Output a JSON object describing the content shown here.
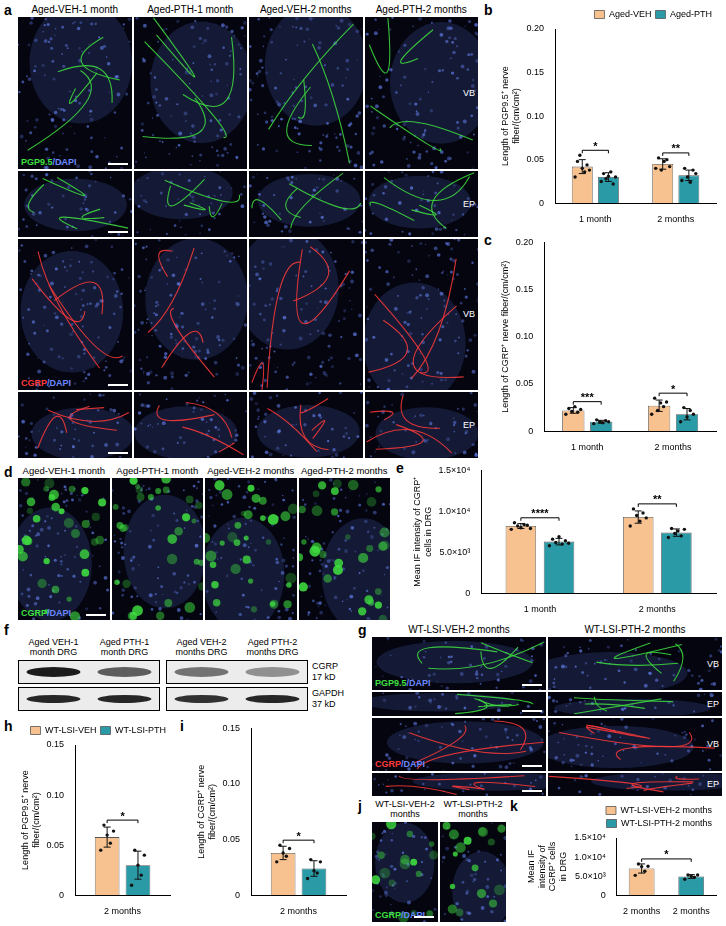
{
  "images": [
    {
      "panel": "a",
      "columns": [
        "Aged-VEH-1 month",
        "Aged-PTH-1 month",
        "Aged-VEH-2 months",
        "Aged-PTH-2 months"
      ],
      "rows": [
        {
          "stain": "PGP9.5/DAPI",
          "colors": [
            "#3fe03f",
            "#6b88ff"
          ],
          "region": "VB"
        },
        {
          "colors": [
            "#3fe03f",
            "#6b88ff"
          ],
          "region": "EP"
        },
        {
          "stain": "CGRP/DAPI",
          "colors": [
            "#ff3a3a",
            "#6b88ff"
          ],
          "region": "VB"
        },
        {
          "colors": [
            "#ff3a3a",
            "#6b88ff"
          ],
          "region": "EP"
        }
      ]
    },
    {
      "panel": "d",
      "columns": [
        "Aged-VEH-1 month",
        "Aged-PTH-1 month",
        "Aged-VEH-2 months",
        "Aged-PTH-2 months"
      ],
      "rows": [
        {
          "stain": "CGRP/DAPI",
          "colors": [
            "#3fe03f",
            "#6b88ff"
          ]
        }
      ]
    },
    {
      "panel": "g",
      "columns": [
        "WT-LSI-VEH-2 months",
        "WT-LSI-PTH-2 months"
      ],
      "rows": [
        {
          "stain": "PGP9.5/DAPI",
          "colors": [
            "#3fe03f",
            "#6b88ff"
          ],
          "region": "VB"
        },
        {
          "colors": [
            "#3fe03f",
            "#6b88ff"
          ],
          "region": "EP"
        },
        {
          "stain": "CGRP/DAPI",
          "colors": [
            "#ff3a3a",
            "#6b88ff"
          ],
          "region": "VB"
        },
        {
          "colors": [
            "#ff3a3a",
            "#6b88ff"
          ],
          "region": "EP"
        }
      ]
    },
    {
      "panel": "j",
      "columns": [
        "WT-LSI-VEH-2 months",
        "WT-LSI-PTH-2 months"
      ],
      "rows": [
        {
          "stain": "CGRP/DAPI",
          "colors": [
            "#3fe03f",
            "#6b88ff"
          ]
        }
      ]
    }
  ],
  "blot": {
    "panel": "f",
    "lanes": [
      "Aged VEH-1 month DRG",
      "Aged PTH-1 month DRG",
      "Aged VEH-2 months DRG",
      "Aged PTH-2 months DRG"
    ],
    "bands": [
      {
        "name": "CGRP",
        "size": "17 kD"
      },
      {
        "name": "GAPDH",
        "size": "37 kD"
      }
    ]
  },
  "chart_data": [
    {
      "panel": "b",
      "type": "bar",
      "y_label": "Length of PGP9.5⁺ nerve fiber/(cm/cm²)",
      "categories": [
        "1 month",
        "2 months"
      ],
      "series": [
        {
          "name": "Aged-VEH",
          "color": "#f7c28f",
          "values": [
            0.042,
            0.045
          ],
          "errors": [
            0.008,
            0.006
          ],
          "points": [
            [
              0.03,
              0.048,
              0.055,
              0.04,
              0.036,
              0.044,
              0.038
            ],
            [
              0.04,
              0.052,
              0.038,
              0.048,
              0.05,
              0.042
            ]
          ]
        },
        {
          "name": "Aged-PTH",
          "color": "#2a9aa6",
          "values": [
            0.03,
            0.032
          ],
          "errors": [
            0.005,
            0.006
          ],
          "points": [
            [
              0.025,
              0.034,
              0.028,
              0.031,
              0.036,
              0.022,
              0.03
            ],
            [
              0.026,
              0.04,
              0.03,
              0.024,
              0.038,
              0.034
            ]
          ]
        }
      ],
      "ylim": [
        0,
        0.2
      ],
      "yticks": [
        0,
        0.05,
        {
          "value": 0.1,
          "label": "0.10"
        },
        0.15,
        {
          "value": 0.2,
          "label": "0.20"
        }
      ],
      "grid": false,
      "legend": "top",
      "significance": [
        {
          "category": 0,
          "label": "*"
        },
        {
          "category": 1,
          "label": "**"
        }
      ]
    },
    {
      "panel": "c",
      "type": "bar",
      "y_label": "Length of CGRP⁺ nerve fiber/(cm/cm²)",
      "categories": [
        "1 month",
        "2 months"
      ],
      "series": [
        {
          "color": "#f7c28f",
          "values": [
            0.022,
            0.027
          ],
          "errors": [
            0.003,
            0.006
          ],
          "points": [
            [
              0.018,
              0.024,
              0.021,
              0.026,
              0.02,
              0.023
            ],
            [
              0.018,
              0.035,
              0.022,
              0.03,
              0.026,
              0.031
            ]
          ]
        },
        {
          "color": "#2a9aa6",
          "values": [
            0.01,
            0.018
          ],
          "errors": [
            0.0015,
            0.006
          ],
          "points": [
            [
              0.008,
              0.012,
              0.01,
              0.009,
              0.011,
              0.01
            ],
            [
              0.01,
              0.025,
              0.015,
              0.022,
              0.018
            ]
          ]
        }
      ],
      "ylim": [
        0,
        0.2
      ],
      "yticks": [
        0,
        0.05,
        {
          "value": 0.1,
          "label": "0.10"
        },
        0.15,
        {
          "value": 0.2,
          "label": "0.20"
        }
      ],
      "grid": false,
      "significance": [
        {
          "category": 0,
          "label": "***"
        },
        {
          "category": 1,
          "label": "*"
        }
      ]
    },
    {
      "panel": "e",
      "type": "bar",
      "y_label": "Mean IF intensity of CGRP⁺ cells in DRG",
      "categories": [
        "1 month",
        "2 months"
      ],
      "series": [
        {
          "color": "#f7c28f",
          "values": [
            8200,
            9300
          ],
          "errors": [
            300,
            750
          ],
          "points": [
            [
              7800,
              8600,
              8200,
              8000,
              8400,
              8300,
              7900
            ],
            [
              8200,
              10300,
              9500,
              8800,
              9800,
              9200
            ]
          ]
        },
        {
          "color": "#2a9aa6",
          "values": [
            6300,
            7400
          ],
          "errors": [
            400,
            450
          ],
          "points": [
            [
              5800,
              6600,
              6200,
              6900,
              6000,
              6400,
              6100
            ],
            [
              6800,
              7900,
              7300,
              7600,
              7000,
              7800
            ]
          ]
        }
      ],
      "ylim": [
        0,
        15000
      ],
      "yticks": [
        0,
        {
          "value": 5000,
          "label": "5.0×10³"
        },
        {
          "value": 10000,
          "label": "1.0×10⁴"
        },
        {
          "value": 15000,
          "label": "1.5×10⁴"
        }
      ],
      "grid": false,
      "significance": [
        {
          "category": 0,
          "label": "****"
        },
        {
          "category": 1,
          "label": "**"
        }
      ]
    },
    {
      "panel": "h",
      "type": "bar",
      "y_label": "Length of PGP9.5⁺ nerve fiber/(cm/cm²)",
      "categories": [
        "2 months"
      ],
      "series": [
        {
          "name": "WT-LSI-VEH",
          "color": "#f7c28f",
          "values": [
            0.058
          ],
          "errors": [
            0.01
          ],
          "points": [
            [
              0.045,
              0.07,
              0.06,
              0.052,
              0.064
            ]
          ]
        },
        {
          "name": "WT-LSI-PTH",
          "color": "#2a9aa6",
          "values": [
            0.03
          ],
          "errors": [
            0.014
          ],
          "points": [
            [
              0.01,
              0.045,
              0.03,
              0.02,
              0.04
            ]
          ]
        }
      ],
      "ylim": [
        0,
        0.15
      ],
      "yticks": [
        0,
        0.05,
        {
          "value": 0.1,
          "label": "0.10"
        },
        0.15
      ],
      "grid": false,
      "legend": "top",
      "significance": [
        {
          "category": 0,
          "label": "*"
        }
      ]
    },
    {
      "panel": "i",
      "type": "bar",
      "y_label": "Length of CGRP⁺ nerve fiber/(cm/cm²)",
      "categories": [
        "2 months"
      ],
      "series": [
        {
          "color": "#f7c28f",
          "values": [
            0.038
          ],
          "errors": [
            0.006
          ],
          "points": [
            [
              0.03,
              0.045,
              0.038,
              0.035,
              0.042
            ]
          ]
        },
        {
          "color": "#2a9aa6",
          "values": [
            0.024
          ],
          "errors": [
            0.007
          ],
          "points": [
            [
              0.015,
              0.032,
              0.022,
              0.02,
              0.03
            ]
          ]
        }
      ],
      "ylim": [
        0,
        0.15
      ],
      "yticks": [
        0,
        0.05,
        {
          "value": 0.1,
          "label": "0.10"
        },
        0.15
      ],
      "grid": false,
      "significance": [
        {
          "category": 0,
          "label": "*"
        }
      ]
    },
    {
      "panel": "k",
      "type": "bar",
      "y_label": "Mean IF intensity of CGRP⁺ cells in DRG",
      "categories": [
        "2 months",
        "2 months"
      ],
      "series": [
        {
          "name": "WT-LSI-VEH-2 months",
          "color": "#f7c28f",
          "values": [
            7000,
            null
          ],
          "errors": [
            1200,
            null
          ],
          "points": [
            [
              5200,
              8200,
              7500,
              6300,
              7600
            ],
            null
          ]
        },
        {
          "name": "WT-LSI-PTH-2 months",
          "color": "#2a9aa6",
          "values": [
            null,
            4900
          ],
          "errors": [
            null,
            500
          ],
          "points": [
            null,
            [
              4200,
              5300,
              5000,
              4700,
              5300
            ]
          ]
        }
      ],
      "ylim": [
        0,
        15000
      ],
      "yticks": [
        0,
        {
          "value": 5000,
          "label": "5.0×10³"
        },
        {
          "value": 10000,
          "label": "1.0×10⁴"
        },
        {
          "value": 15000,
          "label": "1.5×10⁴"
        }
      ],
      "grid": false,
      "legend": "top",
      "significance": [
        {
          "categories": [
            0,
            1
          ],
          "label": "*"
        }
      ]
    }
  ]
}
